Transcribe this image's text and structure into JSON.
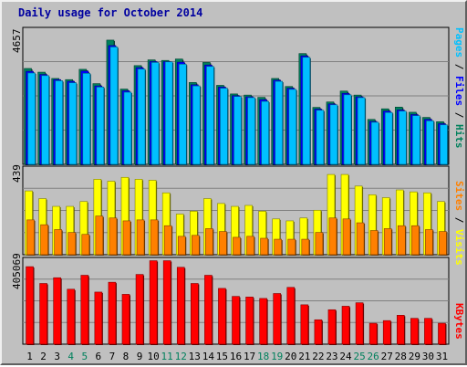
{
  "chart_data": [
    {
      "type": "bar",
      "title": "Daily usage for October 2014",
      "categories": [
        "1",
        "2",
        "3",
        "4",
        "5",
        "6",
        "7",
        "8",
        "9",
        "10",
        "11",
        "12",
        "13",
        "14",
        "15",
        "16",
        "17",
        "18",
        "19",
        "20",
        "21",
        "22",
        "23",
        "24",
        "25",
        "26",
        "27",
        "28",
        "29",
        "30",
        "31"
      ],
      "weekend_days": [
        "4",
        "5",
        "11",
        "12",
        "18",
        "19",
        "25",
        "26"
      ],
      "ymax_label": "4657",
      "ylim": [
        0,
        4657
      ],
      "series": [
        {
          "name": "Hits",
          "color": "#00805C",
          "values": [
            3350,
            3220,
            3000,
            2960,
            3320,
            2820,
            4340,
            2630,
            3450,
            3650,
            3630,
            3680,
            2860,
            3560,
            2760,
            2460,
            2420,
            2340,
            3000,
            2720,
            3870,
            1990,
            2180,
            2560,
            2420,
            1570,
            1940,
            2000,
            1820,
            1640,
            1490
          ]
        },
        {
          "name": "Files",
          "color": "#0000FF",
          "values": [
            3250,
            3140,
            2960,
            2900,
            3260,
            2740,
            4150,
            2570,
            3380,
            3590,
            3590,
            3570,
            2780,
            3470,
            2700,
            2400,
            2360,
            2260,
            2940,
            2660,
            3790,
            1930,
            2110,
            2480,
            2360,
            1500,
            1860,
            1900,
            1740,
            1570,
            1420
          ]
        },
        {
          "name": "Pages",
          "color": "#00C0FF",
          "values": [
            3190,
            3100,
            2920,
            2850,
            3180,
            2700,
            4100,
            2520,
            3330,
            3560,
            3580,
            3500,
            2740,
            3420,
            2660,
            2370,
            2330,
            2200,
            2900,
            2620,
            3740,
            1890,
            2080,
            2430,
            2330,
            1470,
            1810,
            1860,
            1700,
            1520,
            1380
          ]
        }
      ]
    },
    {
      "type": "bar",
      "categories": [
        "1",
        "2",
        "3",
        "4",
        "5",
        "6",
        "7",
        "8",
        "9",
        "10",
        "11",
        "12",
        "13",
        "14",
        "15",
        "16",
        "17",
        "18",
        "19",
        "20",
        "21",
        "22",
        "23",
        "24",
        "25",
        "26",
        "27",
        "28",
        "29",
        "30",
        "31"
      ],
      "ymax_label": "439",
      "ylim": [
        0,
        439
      ],
      "series": [
        {
          "name": "Visits",
          "color": "#FFFF00",
          "values": [
            330,
            290,
            250,
            250,
            275,
            390,
            380,
            400,
            390,
            385,
            320,
            210,
            225,
            290,
            265,
            250,
            255,
            225,
            185,
            175,
            190,
            230,
            415,
            415,
            355,
            310,
            295,
            335,
            325,
            320,
            275
          ]
        },
        {
          "name": "Sites",
          "color": "#FF8000",
          "values": [
            180,
            155,
            130,
            115,
            105,
            200,
            190,
            175,
            180,
            180,
            150,
            95,
            100,
            135,
            120,
            90,
            95,
            85,
            80,
            80,
            80,
            115,
            190,
            185,
            165,
            125,
            135,
            150,
            150,
            130,
            120
          ]
        }
      ]
    },
    {
      "type": "bar",
      "categories": [
        "1",
        "2",
        "3",
        "4",
        "5",
        "6",
        "7",
        "8",
        "9",
        "10",
        "11",
        "12",
        "13",
        "14",
        "15",
        "16",
        "17",
        "18",
        "19",
        "20",
        "21",
        "22",
        "23",
        "24",
        "25",
        "26",
        "27",
        "28",
        "29",
        "30",
        "31"
      ],
      "ymax_label": "405069",
      "ylim": [
        0,
        405069
      ],
      "series": [
        {
          "name": "KBytes",
          "color": "#FF0000",
          "values": [
            378000,
            296000,
            324000,
            268000,
            336000,
            254000,
            302000,
            243000,
            340000,
            407000,
            407000,
            375000,
            296000,
            336000,
            272000,
            233000,
            230000,
            223000,
            247000,
            277000,
            192000,
            119000,
            168000,
            185000,
            202000,
            102000,
            115000,
            141000,
            126000,
            126000,
            102000
          ]
        }
      ]
    }
  ]
}
